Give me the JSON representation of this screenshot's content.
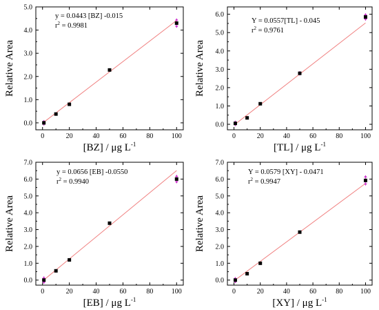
{
  "chart_data": [
    {
      "type": "scatter",
      "xlabel": "[BZ]",
      "xlabel_unit": "μg L",
      "xlabel_unit_exp": "-1",
      "ylabel": "Relative Area",
      "xlim": [
        -5,
        105
      ],
      "ylim": [
        -0.3,
        5.0
      ],
      "xticks": [
        "0",
        "20",
        "40",
        "60",
        "80",
        "100"
      ],
      "yticks": [
        "0.0",
        "1.0",
        "2.0",
        "3.0",
        "4.0",
        "5.0"
      ],
      "ytick_values": [
        0,
        1,
        2,
        3,
        4,
        5
      ],
      "eq_line1": "y = 0.0443 [BZ] -0.015",
      "eq_r": "r",
      "eq_r_exp": "2",
      "eq_r_val": " = 0.9981",
      "fit": {
        "slope": 0.0443,
        "intercept": -0.015,
        "x_from": 1,
        "x_to": 100
      },
      "points": [
        {
          "x": 1,
          "y": 0.0,
          "err": 0.12
        },
        {
          "x": 10,
          "y": 0.38,
          "err": 0.03
        },
        {
          "x": 20,
          "y": 0.8,
          "err": 0.03
        },
        {
          "x": 50,
          "y": 2.28,
          "err": 0.04
        },
        {
          "x": 100,
          "y": 4.3,
          "err": 0.2
        }
      ]
    },
    {
      "type": "scatter",
      "xlabel": "[TL]",
      "xlabel_unit": "μg L",
      "xlabel_unit_exp": "-1",
      "ylabel": "Relative Area",
      "xlim": [
        -5,
        105
      ],
      "ylim": [
        -0.3,
        6.4
      ],
      "xticks": [
        "0",
        "20",
        "40",
        "60",
        "80",
        "100"
      ],
      "yticks": [
        "0.0",
        "1.0",
        "2.0",
        "3.0",
        "4.0",
        "5.0",
        "6.0"
      ],
      "ytick_values": [
        0,
        1,
        2,
        3,
        4,
        5,
        6
      ],
      "eq_line1": "Y = 0.0557[TL] - 0.045",
      "eq_r": "r",
      "eq_r_exp": "2",
      "eq_r_val": " = 0.9761",
      "fit": {
        "slope": 0.0557,
        "intercept": -0.045,
        "x_from": 1,
        "x_to": 100
      },
      "points": [
        {
          "x": 1,
          "y": 0.05,
          "err": 0.15
        },
        {
          "x": 10,
          "y": 0.35,
          "err": 0.04
        },
        {
          "x": 20,
          "y": 1.12,
          "err": 0.05
        },
        {
          "x": 50,
          "y": 2.78,
          "err": 0.12
        },
        {
          "x": 100,
          "y": 5.85,
          "err": 0.2
        }
      ]
    },
    {
      "type": "scatter",
      "xlabel": "[EB]",
      "xlabel_unit": "μg L",
      "xlabel_unit_exp": "-1",
      "ylabel": "Relative Area",
      "xlim": [
        -5,
        105
      ],
      "ylim": [
        -0.3,
        7.0
      ],
      "xticks": [
        "0",
        "20",
        "40",
        "60",
        "80",
        "100"
      ],
      "yticks": [
        "0.0",
        "1.0",
        "2.0",
        "3.0",
        "4.0",
        "5.0",
        "6.0",
        "7.0"
      ],
      "ytick_values": [
        0,
        1,
        2,
        3,
        4,
        5,
        6,
        7
      ],
      "eq_line1": "y = 0.0656 [EB] -0.0550",
      "eq_r": "r",
      "eq_r_exp": "2",
      "eq_r_val": " = 0.9940",
      "fit": {
        "slope": 0.0656,
        "intercept": -0.055,
        "x_from": 1,
        "x_to": 100
      },
      "points": [
        {
          "x": 1,
          "y": 0.0,
          "err": 0.22
        },
        {
          "x": 10,
          "y": 0.55,
          "err": 0.04
        },
        {
          "x": 20,
          "y": 1.2,
          "err": 0.08
        },
        {
          "x": 50,
          "y": 3.38,
          "err": 0.05
        },
        {
          "x": 100,
          "y": 6.0,
          "err": 0.25
        }
      ]
    },
    {
      "type": "scatter",
      "xlabel": "[XY]",
      "xlabel_unit": "μg L",
      "xlabel_unit_exp": "-1",
      "ylabel": "Relative Area",
      "xlim": [
        -5,
        105
      ],
      "ylim": [
        -0.3,
        7.0
      ],
      "xticks": [
        "0",
        "20",
        "40",
        "60",
        "80",
        "100"
      ],
      "yticks": [
        "0.0",
        "1.0",
        "2.0",
        "3.0",
        "4.0",
        "5.0",
        "6.0",
        "7.0"
      ],
      "ytick_values": [
        0,
        1,
        2,
        3,
        4,
        5,
        6,
        7
      ],
      "eq_line1": "Y = 0.0579 [XY] - 0.0471",
      "eq_r": "r",
      "eq_r_exp": "2",
      "eq_r_val": " = 0.9947",
      "fit": {
        "slope": 0.0579,
        "intercept": -0.0471,
        "x_from": 1,
        "x_to": 100
      },
      "points": [
        {
          "x": 1,
          "y": 0.0,
          "err": 0.18
        },
        {
          "x": 10,
          "y": 0.38,
          "err": 0.04
        },
        {
          "x": 20,
          "y": 1.0,
          "err": 0.05
        },
        {
          "x": 50,
          "y": 2.85,
          "err": 0.05
        },
        {
          "x": 100,
          "y": 5.92,
          "err": 0.3
        }
      ]
    }
  ],
  "colors": {
    "fit_line": "#f08080",
    "error_bar": "#cc33cc",
    "marker": "#000000",
    "axis": "#000000"
  }
}
